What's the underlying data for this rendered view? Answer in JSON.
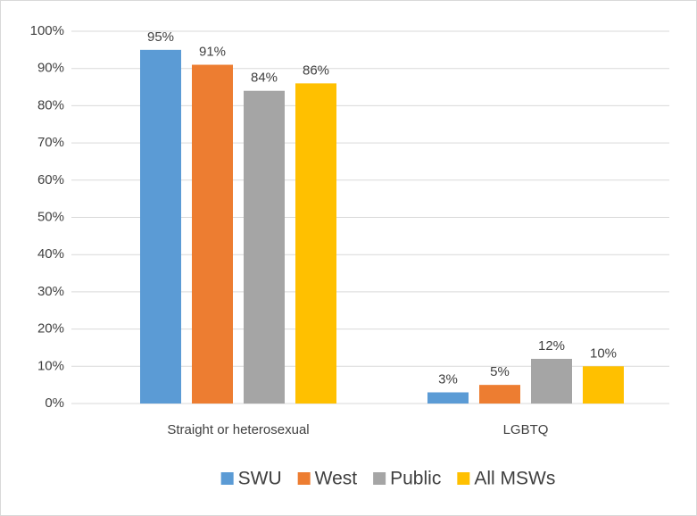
{
  "chart_data": {
    "type": "bar",
    "categories": [
      "Straight or heterosexual",
      "LGBTQ"
    ],
    "series": [
      {
        "name": "SWU",
        "color": "#5b9bd5",
        "values": [
          95,
          3
        ],
        "value_labels": [
          "95%",
          "3%"
        ]
      },
      {
        "name": "West",
        "color": "#ed7d31",
        "values": [
          91,
          5
        ],
        "value_labels": [
          "91%",
          "5%"
        ]
      },
      {
        "name": "Public",
        "color": "#a5a5a5",
        "values": [
          84,
          12
        ],
        "value_labels": [
          "84%",
          "12%"
        ]
      },
      {
        "name": "All MSWs",
        "color": "#ffc000",
        "values": [
          86,
          10
        ],
        "value_labels": [
          "86%",
          "10%"
        ]
      }
    ],
    "ylim": [
      0,
      100
    ],
    "yticks": [
      {
        "value": 0,
        "label": "0%"
      },
      {
        "value": 10,
        "label": "10%"
      },
      {
        "value": 20,
        "label": "20%"
      },
      {
        "value": 30,
        "label": "30%"
      },
      {
        "value": 40,
        "label": "40%"
      },
      {
        "value": 50,
        "label": "50%"
      },
      {
        "value": 60,
        "label": "60%"
      },
      {
        "value": 70,
        "label": "70%"
      },
      {
        "value": 80,
        "label": "80%"
      },
      {
        "value": 90,
        "label": "90%"
      },
      {
        "value": 100,
        "label": "100%"
      }
    ],
    "grid": true,
    "legend": "bottom"
  }
}
